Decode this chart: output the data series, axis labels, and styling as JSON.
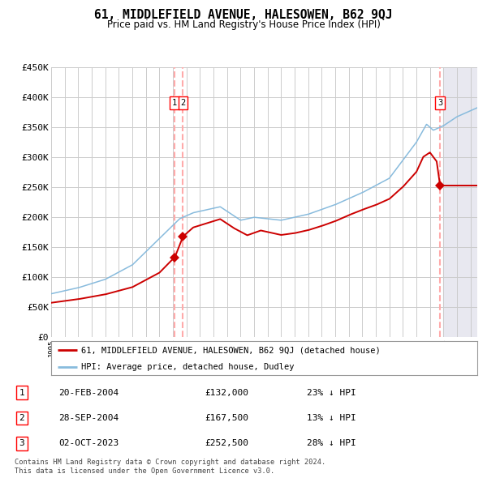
{
  "title": "61, MIDDLEFIELD AVENUE, HALESOWEN, B62 9QJ",
  "subtitle": "Price paid vs. HM Land Registry's House Price Index (HPI)",
  "ylim": [
    0,
    450000
  ],
  "yticks": [
    0,
    50000,
    100000,
    150000,
    200000,
    250000,
    300000,
    350000,
    400000,
    450000
  ],
  "xlim_start": 1995.0,
  "xlim_end": 2026.5,
  "sale_dates_num": [
    2004.13,
    2004.75,
    2023.75
  ],
  "sale_prices": [
    132000,
    167500,
    252500
  ],
  "sale_labels": [
    "1",
    "2",
    "3"
  ],
  "future_shade_start": 2024.0,
  "red_line_color": "#cc0000",
  "blue_line_color": "#88bbdd",
  "vline_color": "#ffaaaa",
  "shade_color": "#e8e8f0",
  "grid_color": "#cccccc",
  "background_color": "#ffffff",
  "legend_label_red": "61, MIDDLEFIELD AVENUE, HALESOWEN, B62 9QJ (detached house)",
  "legend_label_blue": "HPI: Average price, detached house, Dudley",
  "table_rows": [
    {
      "num": "1",
      "date": "20-FEB-2004",
      "price": "£132,000",
      "pct": "23% ↓ HPI"
    },
    {
      "num": "2",
      "date": "28-SEP-2004",
      "price": "£167,500",
      "pct": "13% ↓ HPI"
    },
    {
      "num": "3",
      "date": "02-OCT-2023",
      "price": "£252,500",
      "pct": "28% ↓ HPI"
    }
  ],
  "footer": "Contains HM Land Registry data © Crown copyright and database right 2024.\nThis data is licensed under the Open Government Licence v3.0."
}
